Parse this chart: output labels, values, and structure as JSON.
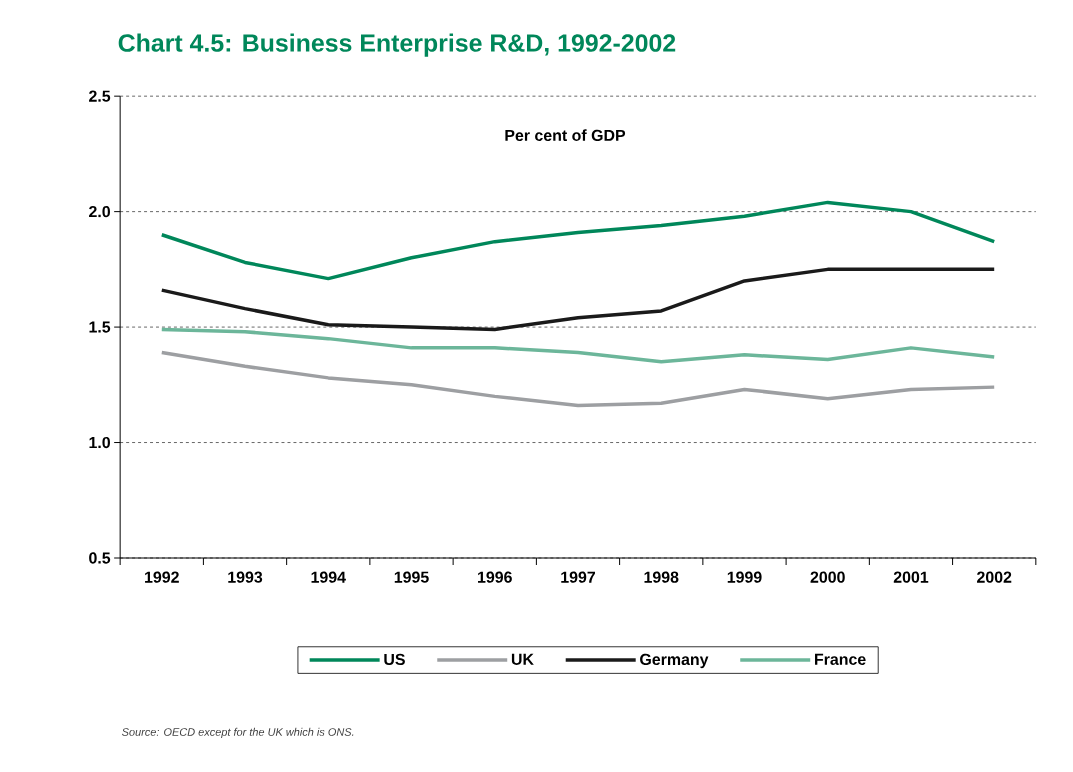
{
  "chart_data": {
    "type": "line",
    "title": "Chart 4.5: Business Enterprise R&D, 1992-2002",
    "subtitle": "Per cent of GDP",
    "categories": [
      "1992",
      "1993",
      "1994",
      "1995",
      "1996",
      "1997",
      "1998",
      "1999",
      "2000",
      "2001",
      "2002"
    ],
    "series": [
      {
        "name": "US",
        "color": "#00875a",
        "values": [
          1.9,
          1.78,
          1.71,
          1.8,
          1.87,
          1.91,
          1.94,
          1.98,
          2.04,
          2.0,
          1.87
        ]
      },
      {
        "name": "UK",
        "color": "#9d9fa2",
        "values": [
          1.39,
          1.33,
          1.28,
          1.25,
          1.2,
          1.16,
          1.17,
          1.23,
          1.19,
          1.23,
          1.24
        ]
      },
      {
        "name": "Germany",
        "color": "#1a1a1a",
        "values": [
          1.66,
          1.58,
          1.51,
          1.5,
          1.49,
          1.54,
          1.57,
          1.7,
          1.75,
          1.75,
          1.75
        ]
      },
      {
        "name": "France",
        "color": "#6cb69a",
        "values": [
          1.49,
          1.48,
          1.45,
          1.41,
          1.41,
          1.39,
          1.35,
          1.38,
          1.36,
          1.41,
          1.37
        ]
      }
    ],
    "ylim": [
      0.5,
      2.5
    ],
    "yticks": [
      0.5,
      {
        "value": 1,
        "label": "1.0"
      },
      1.5,
      {
        "value": 2,
        "label": "2.0"
      },
      2.5
    ],
    "grid": "y",
    "legend": "bottom",
    "marker": "none",
    "line_style": "solid",
    "annotations": [
      "Source: OECD except for the UK which is ONS."
    ]
  }
}
